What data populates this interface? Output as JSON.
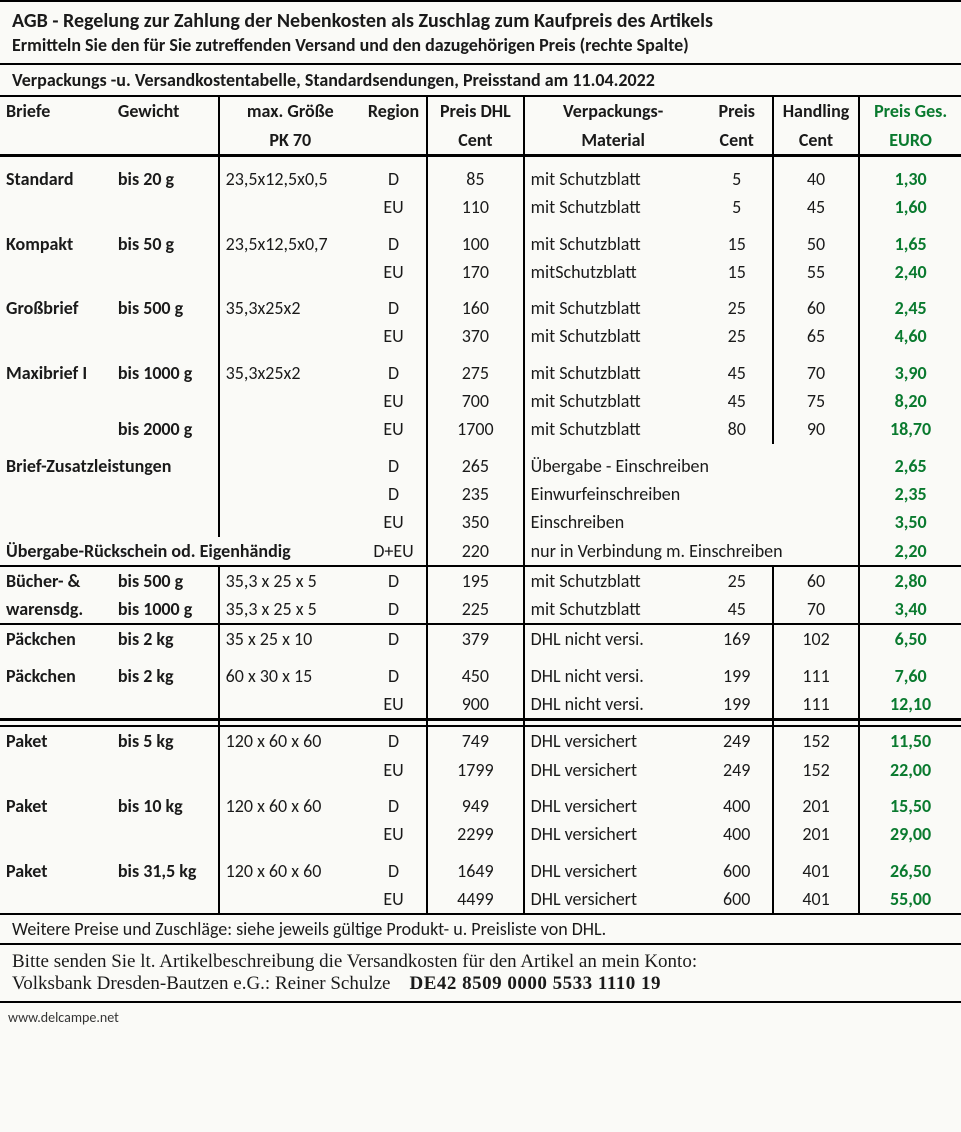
{
  "colors": {
    "text": "#1a1a1a",
    "price_green": "#0a7a2f",
    "border": "#000000",
    "background": "#fafaf7"
  },
  "typography": {
    "body_font": "Calibri, Arial, sans-serif",
    "footer_font": "Times New Roman, serif",
    "title_size_pt": 15,
    "body_size_pt": 13
  },
  "header": {
    "title": "AGB - Regelung zur Zahlung der Nebenkosten als Zuschlag zum Kaufpreis des Artikels",
    "subtitle": "Ermitteln Sie den für Sie zutreffenden Versand und den dazugehörigen Preis (rechte Spalte)"
  },
  "banner": "Verpackungs -u. Versandkostentabelle, Standardsendungen,   Preisstand am 11.04.2022",
  "columns": {
    "briefe": "Briefe",
    "gewicht": "Gewicht",
    "groesse_l1": "max. Größe",
    "groesse_l2": "PK 70",
    "region": "Region",
    "preisdhl_l1": "Preis DHL",
    "preisdhl_l2": "Cent",
    "material_l1": "Verpackungs-",
    "material_l2": "Material",
    "preisc_l1": "Preis",
    "preisc_l2": "Cent",
    "handling_l1": "Handling",
    "handling_l2": "Cent",
    "ges_l1": "Preis Ges.",
    "ges_l2": "EURO"
  },
  "rows": [
    {
      "briefe": "Standard",
      "gewicht": "bis 20 g",
      "groesse": "23,5x12,5x0,5",
      "region": "D",
      "dhl": "85",
      "material": "mit Schutzblatt",
      "preisc": "5",
      "handling": "40",
      "ges": "1,30"
    },
    {
      "briefe": "",
      "gewicht": "",
      "groesse": "",
      "region": "EU",
      "dhl": "110",
      "material": "mit Schutzblatt",
      "preisc": "5",
      "handling": "45",
      "ges": "1,60"
    },
    {
      "briefe": "Kompakt",
      "gewicht": "bis 50 g",
      "groesse": "23,5x12,5x0,7",
      "region": "D",
      "dhl": "100",
      "material": "mit Schutzblatt",
      "preisc": "15",
      "handling": "50",
      "ges": "1,65"
    },
    {
      "briefe": "",
      "gewicht": "",
      "groesse": "",
      "region": "EU",
      "dhl": "170",
      "material": "mitSchutzblatt",
      "preisc": "15",
      "handling": "55",
      "ges": "2,40"
    },
    {
      "briefe": "Großbrief",
      "gewicht": "bis 500 g",
      "groesse": "35,3x25x2",
      "region": "D",
      "dhl": "160",
      "material": "mit Schutzblatt",
      "preisc": "25",
      "handling": "60",
      "ges": "2,45"
    },
    {
      "briefe": "",
      "gewicht": "",
      "groesse": "",
      "region": "EU",
      "dhl": "370",
      "material": "mit Schutzblatt",
      "preisc": "25",
      "handling": "65",
      "ges": "4,60"
    },
    {
      "briefe": "Maxibrief I",
      "gewicht": "bis 1000 g",
      "groesse": "35,3x25x2",
      "region": "D",
      "dhl": "275",
      "material": "mit Schutzblatt",
      "preisc": "45",
      "handling": "70",
      "ges": "3,90"
    },
    {
      "briefe": "",
      "gewicht": "",
      "groesse": "",
      "region": "EU",
      "dhl": "700",
      "material": "mit Schutzblatt",
      "preisc": "45",
      "handling": "75",
      "ges": "8,20"
    },
    {
      "briefe": "",
      "gewicht": "bis 2000 g",
      "groesse": "",
      "region": "EU",
      "dhl": "1700",
      "material": "mit Schutzblatt",
      "preisc": "80",
      "handling": "90",
      "ges": "18,70"
    }
  ],
  "zusatz_label": "Brief-Zusatzleistungen",
  "zusatz_rows": [
    {
      "region": "D",
      "dhl": "265",
      "material": "Übergabe - Einschreiben",
      "ges": "2,65"
    },
    {
      "region": "D",
      "dhl": "235",
      "material": "Einwurfeinschreiben",
      "ges": "2,35"
    },
    {
      "region": "EU",
      "dhl": "350",
      "material": "   Einschreiben",
      "ges": "3,50"
    }
  ],
  "rueckschein": {
    "label": "Übergabe-Rückschein od. Eigenhändig",
    "region": "D+EU",
    "dhl": "220",
    "material": "nur in Verbindung m. Einschreiben",
    "ges": "2,20"
  },
  "buecher_rows": [
    {
      "briefe": "Bücher- &",
      "gewicht": "bis 500 g",
      "groesse": "35,3 x 25 x 5",
      "region": "D",
      "dhl": "195",
      "material": "mit Schutzblatt",
      "preisc": "25",
      "handling": "60",
      "ges": "2,80"
    },
    {
      "briefe": "warensdg.",
      "gewicht": "bis 1000 g",
      "groesse": "35,3 x 25 x 5",
      "region": "D",
      "dhl": "225",
      "material": "mit Schutzblatt",
      "preisc": "45",
      "handling": "70",
      "ges": "3,40"
    }
  ],
  "paeckchen_rows": [
    {
      "briefe": "Päckchen",
      "gewicht": "bis 2 kg",
      "groesse": "35 x 25 x 10",
      "region": "D",
      "dhl": "379",
      "material": "DHL nicht versi.",
      "preisc": "169",
      "handling": "102",
      "ges": "6,50"
    },
    {
      "briefe": "Päckchen",
      "gewicht": "bis 2 kg",
      "groesse": "60 x 30 x 15",
      "region": "D",
      "dhl": "450",
      "material": "DHL nicht versi.",
      "preisc": "199",
      "handling": "111",
      "ges": "7,60"
    },
    {
      "briefe": "",
      "gewicht": "",
      "groesse": "",
      "region": "EU",
      "dhl": "900",
      "material": "DHL nicht versi.",
      "preisc": "199",
      "handling": "111",
      "ges": "12,10"
    }
  ],
  "paket_rows": [
    {
      "briefe": "Paket",
      "gewicht": "bis 5 kg",
      "groesse": "120 x 60 x 60",
      "region": "D",
      "dhl": "749",
      "material": "DHL versichert",
      "preisc": "249",
      "handling": "152",
      "ges": "11,50"
    },
    {
      "briefe": "",
      "gewicht": "",
      "groesse": "",
      "region": "EU",
      "dhl": "1799",
      "material": "DHL versichert",
      "preisc": "249",
      "handling": "152",
      "ges": "22,00"
    },
    {
      "briefe": "Paket",
      "gewicht": "bis 10 kg",
      "groesse": "120 x 60 x 60",
      "region": "D",
      "dhl": "949",
      "material": "DHL versichert",
      "preisc": "400",
      "handling": "201",
      "ges": "15,50"
    },
    {
      "briefe": "",
      "gewicht": "",
      "groesse": "",
      "region": "EU",
      "dhl": "2299",
      "material": "DHL versichert",
      "preisc": "400",
      "handling": "201",
      "ges": "29,00"
    },
    {
      "briefe": "Paket",
      "gewicht": "bis 31,5 kg",
      "groesse": "120 x 60 x 60",
      "region": "D",
      "dhl": "1649",
      "material": "DHL versichert",
      "preisc": "600",
      "handling": "401",
      "ges": "26,50"
    },
    {
      "briefe": "",
      "gewicht": "",
      "groesse": "",
      "region": "EU",
      "dhl": "4499",
      "material": "DHL versichert",
      "preisc": "600",
      "handling": "401",
      "ges": "55,00"
    }
  ],
  "note": "Weitere Preise und Zuschläge: siehe jeweils gültige Produkt- u. Preisliste von DHL.",
  "footer": {
    "line1": "Bitte senden Sie lt. Artikelbeschreibung die Versandkosten für den Artikel an mein Konto:",
    "bank": "Volksbank Dresden-Bautzen e.G.: Reiner Schulze",
    "iban": "DE42 8509 0000 5533 1110 19"
  },
  "credit": "www.delcampe.net"
}
